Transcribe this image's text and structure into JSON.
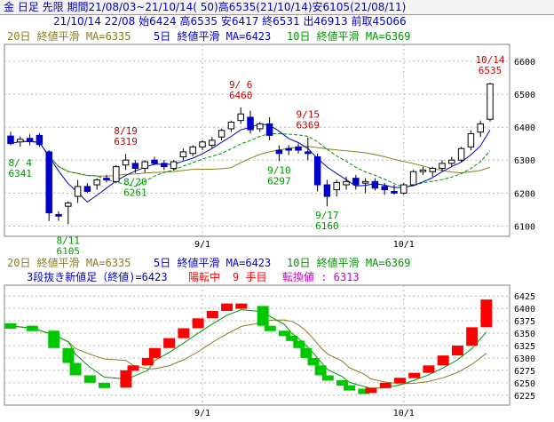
{
  "header": {
    "line1": "金 日足 先限 期間21/08/03~21/10/14( 50)高6535(21/10/14)安6105(21/08/11)",
    "line2": "21/10/14 22/08 始6424 高6535 安6417 終6531 出46913 前取45066"
  },
  "colors": {
    "up": "#ffffff",
    "down": "#0000c8",
    "ma20": "#8b7d1e",
    "ma5": "#0000c8",
    "ma10": "#009600",
    "bull_block": "#ff0000",
    "bear_block": "#00c800",
    "magenta": "#c800c8",
    "annot_red": "#c80000",
    "annot_green": "#009600"
  },
  "chart_data": [
    {
      "type": "candlestick",
      "legend": [
        {
          "label": "20日 終値平滑 MA=6335",
          "color": "#8b7d1e"
        },
        {
          "label": "5日 終値平滑 MA=6423",
          "color": "#0000c8"
        },
        {
          "label": "10日 終値平滑 MA=6369",
          "color": "#009600"
        }
      ],
      "yticks": [
        6100,
        6200,
        6300,
        6400,
        6500,
        6600
      ],
      "ylim": [
        6085,
        6640
      ],
      "xticks": [
        {
          "i": 20,
          "label": "9/1"
        },
        {
          "i": 41,
          "label": "10/1"
        }
      ],
      "candles": [
        {
          "date": "08/03",
          "o": 6373,
          "h": 6386,
          "l": 6345,
          "c": 6350
        },
        {
          "date": "08/04",
          "o": 6355,
          "h": 6372,
          "l": 6341,
          "c": 6363
        },
        {
          "date": "08/05",
          "o": 6366,
          "h": 6378,
          "l": 6345,
          "c": 6356
        },
        {
          "date": "08/06",
          "o": 6375,
          "h": 6382,
          "l": 6340,
          "c": 6347
        },
        {
          "date": "08/09",
          "o": 6325,
          "h": 6330,
          "l": 6115,
          "c": 6140
        },
        {
          "date": "08/10",
          "o": 6135,
          "h": 6145,
          "l": 6116,
          "c": 6130
        },
        {
          "date": "08/11",
          "o": 6160,
          "h": 6175,
          "l": 6105,
          "c": 6170
        },
        {
          "date": "08/12",
          "o": 6190,
          "h": 6240,
          "l": 6170,
          "c": 6220
        },
        {
          "date": "08/13",
          "o": 6220,
          "h": 6230,
          "l": 6200,
          "c": 6205
        },
        {
          "date": "08/16",
          "o": 6225,
          "h": 6245,
          "l": 6210,
          "c": 6240
        },
        {
          "date": "08/17",
          "o": 6245,
          "h": 6255,
          "l": 6232,
          "c": 6240
        },
        {
          "date": "08/18",
          "o": 6235,
          "h": 6285,
          "l": 6230,
          "c": 6280
        },
        {
          "date": "08/19",
          "o": 6285,
          "h": 6319,
          "l": 6270,
          "c": 6300
        },
        {
          "date": "08/20",
          "o": 6290,
          "h": 6300,
          "l": 6261,
          "c": 6275
        },
        {
          "date": "08/23",
          "o": 6275,
          "h": 6300,
          "l": 6262,
          "c": 6295
        },
        {
          "date": "08/24",
          "o": 6300,
          "h": 6310,
          "l": 6285,
          "c": 6290
        },
        {
          "date": "08/25",
          "o": 6290,
          "h": 6300,
          "l": 6270,
          "c": 6280
        },
        {
          "date": "08/26",
          "o": 6275,
          "h": 6300,
          "l": 6268,
          "c": 6295
        },
        {
          "date": "08/27",
          "o": 6310,
          "h": 6335,
          "l": 6300,
          "c": 6325
        },
        {
          "date": "08/30",
          "o": 6320,
          "h": 6345,
          "l": 6312,
          "c": 6340
        },
        {
          "date": "08/31",
          "o": 6340,
          "h": 6360,
          "l": 6330,
          "c": 6355
        },
        {
          "date": "09/01",
          "o": 6345,
          "h": 6370,
          "l": 6335,
          "c": 6360
        },
        {
          "date": "09/02",
          "o": 6370,
          "h": 6395,
          "l": 6360,
          "c": 6390
        },
        {
          "date": "09/03",
          "o": 6395,
          "h": 6420,
          "l": 6385,
          "c": 6415
        },
        {
          "date": "09/06",
          "o": 6420,
          "h": 6460,
          "l": 6410,
          "c": 6440
        },
        {
          "date": "09/07",
          "o": 6430,
          "h": 6450,
          "l": 6380,
          "c": 6392
        },
        {
          "date": "09/08",
          "o": 6395,
          "h": 6415,
          "l": 6385,
          "c": 6410
        },
        {
          "date": "09/09",
          "o": 6410,
          "h": 6430,
          "l": 6360,
          "c": 6375
        },
        {
          "date": "09/10",
          "o": 6330,
          "h": 6345,
          "l": 6297,
          "c": 6320
        },
        {
          "date": "09/13",
          "o": 6335,
          "h": 6345,
          "l": 6315,
          "c": 6330
        },
        {
          "date": "09/14",
          "o": 6340,
          "h": 6350,
          "l": 6320,
          "c": 6330
        },
        {
          "date": "09/15",
          "o": 6325,
          "h": 6369,
          "l": 6300,
          "c": 6320
        },
        {
          "date": "09/16",
          "o": 6310,
          "h": 6320,
          "l": 6205,
          "c": 6225
        },
        {
          "date": "09/17",
          "o": 6225,
          "h": 6240,
          "l": 6160,
          "c": 6190
        },
        {
          "date": "09/21",
          "o": 6210,
          "h": 6240,
          "l": 6190,
          "c": 6232
        },
        {
          "date": "09/22",
          "o": 6225,
          "h": 6250,
          "l": 6210,
          "c": 6235
        },
        {
          "date": "09/24",
          "o": 6245,
          "h": 6255,
          "l": 6210,
          "c": 6225
        },
        {
          "date": "09/27",
          "o": 6230,
          "h": 6245,
          "l": 6200,
          "c": 6235
        },
        {
          "date": "09/28",
          "o": 6235,
          "h": 6245,
          "l": 6208,
          "c": 6215
        },
        {
          "date": "09/29",
          "o": 6220,
          "h": 6230,
          "l": 6195,
          "c": 6210
        },
        {
          "date": "09/30",
          "o": 6205,
          "h": 6225,
          "l": 6195,
          "c": 6200
        },
        {
          "date": "10/01",
          "o": 6200,
          "h": 6230,
          "l": 6195,
          "c": 6225
        },
        {
          "date": "10/04",
          "o": 6225,
          "h": 6270,
          "l": 6220,
          "c": 6265
        },
        {
          "date": "10/05",
          "o": 6265,
          "h": 6280,
          "l": 6255,
          "c": 6270
        },
        {
          "date": "10/06",
          "o": 6265,
          "h": 6280,
          "l": 6250,
          "c": 6275
        },
        {
          "date": "10/07",
          "o": 6275,
          "h": 6300,
          "l": 6265,
          "c": 6290
        },
        {
          "date": "10/08",
          "o": 6290,
          "h": 6310,
          "l": 6280,
          "c": 6300
        },
        {
          "date": "10/11",
          "o": 6300,
          "h": 6340,
          "l": 6295,
          "c": 6335
        },
        {
          "date": "10/12",
          "o": 6340,
          "h": 6390,
          "l": 6330,
          "c": 6380
        },
        {
          "date": "10/13",
          "o": 6385,
          "h": 6420,
          "l": 6370,
          "c": 6410
        },
        {
          "date": "10/14",
          "o": 6424,
          "h": 6535,
          "l": 6417,
          "c": 6531
        }
      ],
      "annotations": [
        {
          "i": 1,
          "value": 6341,
          "date_label": "8/ 4",
          "value_label": "6341",
          "kind": "low",
          "color": "green"
        },
        {
          "i": 6,
          "value": 6105,
          "date_label": "8/11",
          "value_label": "6105",
          "kind": "low",
          "color": "green"
        },
        {
          "i": 12,
          "value": 6319,
          "date_label": "8/19",
          "value_label": "6319",
          "kind": "high",
          "color": "red"
        },
        {
          "i": 13,
          "value": 6261,
          "date_label": "8/20",
          "value_label": "6261",
          "kind": "low",
          "color": "green"
        },
        {
          "i": 24,
          "value": 6460,
          "date_label": "9/ 6",
          "value_label": "6460",
          "kind": "high",
          "color": "red"
        },
        {
          "i": 28,
          "value": 6297,
          "date_label": "9/10",
          "value_label": "6297",
          "kind": "low",
          "color": "green"
        },
        {
          "i": 31,
          "value": 6369,
          "date_label": "9/15",
          "value_label": "6369",
          "kind": "high",
          "color": "red"
        },
        {
          "i": 33,
          "value": 6160,
          "date_label": "9/17",
          "value_label": "6160",
          "kind": "low",
          "color": "green"
        },
        {
          "i": 50,
          "value": 6535,
          "date_label": "10/14",
          "value_label": "6535",
          "kind": "high",
          "color": "red"
        }
      ]
    },
    {
      "type": "three_line_break",
      "legend": [
        {
          "label": "20日 終値平滑 MA=6335",
          "color": "#8b7d1e"
        },
        {
          "label": "5日 終値平滑 MA=6423",
          "color": "#0000c8"
        },
        {
          "label": "10日 終値平滑 MA=6369",
          "color": "#009600"
        }
      ],
      "subtitle_parts": [
        {
          "text": "3段抜き新値足（終値)=6423",
          "color": "#0000c8"
        },
        {
          "text": "陽転中",
          "color": "#ff0000"
        },
        {
          "text": "9 手目",
          "color": "#ff0000"
        },
        {
          "text": "転換値 : 6313",
          "color": "#c800c8"
        }
      ],
      "yticks": [
        6225,
        6250,
        6275,
        6300,
        6325,
        6350,
        6375,
        6400,
        6425
      ],
      "ylim": [
        6212,
        6438
      ],
      "xticks": [
        {
          "i": 20,
          "label": "9/1"
        },
        {
          "i": 41,
          "label": "10/1"
        }
      ],
      "blocks": [
        {
          "i": 0,
          "from": 6370,
          "to": 6365,
          "up": false
        },
        {
          "i": 3,
          "from": 6365,
          "to": 6355,
          "up": false
        },
        {
          "i": 6,
          "from": 6355,
          "to": 6320,
          "up": false
        },
        {
          "i": 8,
          "from": 6320,
          "to": 6290,
          "up": false
        },
        {
          "i": 9,
          "from": 6290,
          "to": 6265,
          "up": false
        },
        {
          "i": 11,
          "from": 6265,
          "to": 6250,
          "up": false
        },
        {
          "i": 13,
          "from": 6250,
          "to": 6240,
          "up": false
        },
        {
          "i": 16,
          "from": 6240,
          "to": 6275,
          "up": true
        },
        {
          "i": 17,
          "from": 6275,
          "to": 6285,
          "up": true
        },
        {
          "i": 19,
          "from": 6285,
          "to": 6300,
          "up": true
        },
        {
          "i": 20,
          "from": 6300,
          "to": 6320,
          "up": true
        },
        {
          "i": 22,
          "from": 6320,
          "to": 6340,
          "up": true
        },
        {
          "i": 24,
          "from": 6340,
          "to": 6360,
          "up": true
        },
        {
          "i": 26,
          "from": 6360,
          "to": 6380,
          "up": true
        },
        {
          "i": 28,
          "from": 6380,
          "to": 6395,
          "up": true
        },
        {
          "i": 30,
          "from": 6395,
          "to": 6410,
          "up": true
        },
        {
          "i": 32,
          "from": 6410,
          "to": 6405,
          "up": true
        },
        {
          "i": 35,
          "from": 6405,
          "to": 6365,
          "up": false
        },
        {
          "i": 36,
          "from": 6365,
          "to": 6355,
          "up": false
        },
        {
          "i": 38,
          "from": 6355,
          "to": 6345,
          "up": false
        },
        {
          "i": 39,
          "from": 6345,
          "to": 6335,
          "up": false
        },
        {
          "i": 40,
          "from": 6335,
          "to": 6320,
          "up": false
        },
        {
          "i": 41,
          "from": 6320,
          "to": 6300,
          "up": false
        },
        {
          "i": 42,
          "from": 6300,
          "to": 6285,
          "up": false
        },
        {
          "i": 43,
          "from": 6285,
          "to": 6265,
          "up": false
        },
        {
          "i": 44,
          "from": 6265,
          "to": 6255,
          "up": false
        },
        {
          "i": 46,
          "from": 6255,
          "to": 6245,
          "up": false
        },
        {
          "i": 47,
          "from": 6245,
          "to": 6238,
          "up": false
        },
        {
          "i": 49,
          "from": 6238,
          "to": 6232,
          "up": false
        },
        {
          "i": 50,
          "from": 6232,
          "to": 6240,
          "up": true
        },
        {
          "i": 52,
          "from": 6240,
          "to": 6250,
          "up": true
        },
        {
          "i": 54,
          "from": 6250,
          "to": 6260,
          "up": true
        },
        {
          "i": 56,
          "from": 6260,
          "to": 6270,
          "up": true
        },
        {
          "i": 58,
          "from": 6270,
          "to": 6285,
          "up": true
        },
        {
          "i": 60,
          "from": 6285,
          "to": 6305,
          "up": true
        },
        {
          "i": 62,
          "from": 6305,
          "to": 6325,
          "up": true
        },
        {
          "i": 64,
          "from": 6325,
          "to": 6362,
          "up": true
        },
        {
          "i": 66,
          "from": 6362,
          "to": 6418,
          "up": true
        }
      ],
      "block_count": 68
    }
  ]
}
